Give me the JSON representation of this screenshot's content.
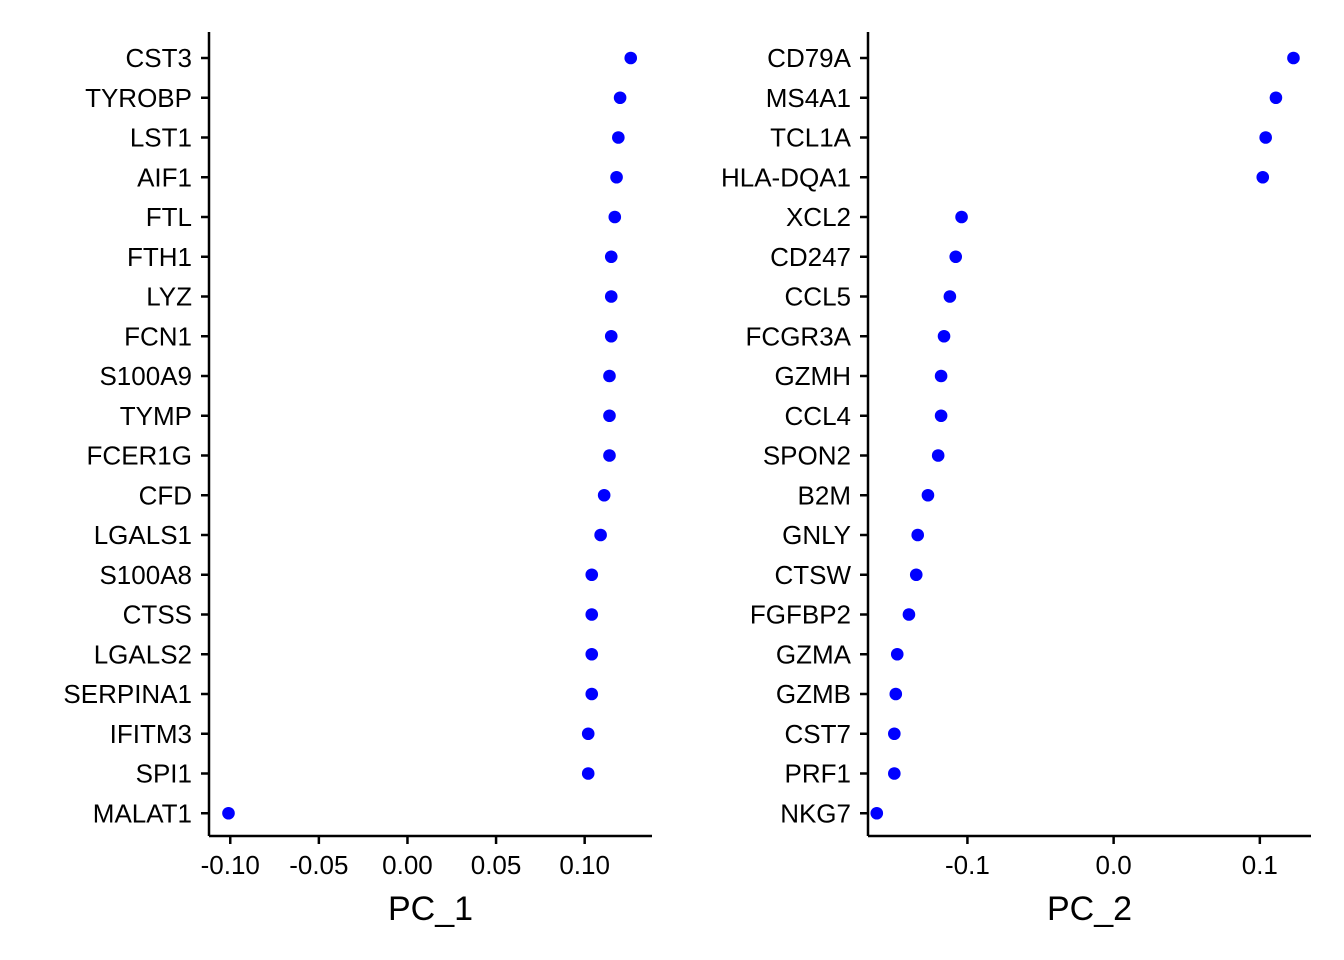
{
  "chart_data": [
    {
      "type": "scatter",
      "xlabel": "PC_1",
      "xlim": [
        -0.112,
        0.138
      ],
      "xticks": [
        -0.1,
        -0.05,
        0.0,
        0.05,
        0.1
      ],
      "xtick_labels": [
        "-0.10",
        "-0.05",
        "0.00",
        "0.05",
        "0.10"
      ],
      "point_color": "#0000ff",
      "genes": [
        "CST3",
        "TYROBP",
        "LST1",
        "AIF1",
        "FTL",
        "FTH1",
        "LYZ",
        "FCN1",
        "S100A9",
        "TYMP",
        "FCER1G",
        "CFD",
        "LGALS1",
        "S100A8",
        "CTSS",
        "LGALS2",
        "SERPINA1",
        "IFITM3",
        "SPI1",
        "MALAT1"
      ],
      "values": [
        0.126,
        0.12,
        0.119,
        0.118,
        0.117,
        0.115,
        0.115,
        0.115,
        0.114,
        0.114,
        0.114,
        0.111,
        0.109,
        0.104,
        0.104,
        0.104,
        0.104,
        0.102,
        0.102,
        -0.101
      ]
    },
    {
      "type": "scatter",
      "xlabel": "PC_2",
      "xlim": [
        -0.168,
        0.135
      ],
      "xticks": [
        -0.1,
        0.0,
        0.1
      ],
      "xtick_labels": [
        "-0.1",
        "0.0",
        "0.1"
      ],
      "point_color": "#0000ff",
      "genes": [
        "CD79A",
        "MS4A1",
        "TCL1A",
        "HLA-DQA1",
        "XCL2",
        "CD247",
        "CCL5",
        "FCGR3A",
        "GZMH",
        "CCL4",
        "SPON2",
        "B2M",
        "GNLY",
        "CTSW",
        "FGFBP2",
        "GZMA",
        "GZMB",
        "CST7",
        "PRF1",
        "NKG7"
      ],
      "values": [
        0.123,
        0.111,
        0.104,
        0.102,
        -0.104,
        -0.108,
        -0.112,
        -0.116,
        -0.118,
        -0.118,
        -0.12,
        -0.127,
        -0.134,
        -0.135,
        -0.14,
        -0.148,
        -0.149,
        -0.15,
        -0.15,
        -0.162
      ]
    }
  ]
}
